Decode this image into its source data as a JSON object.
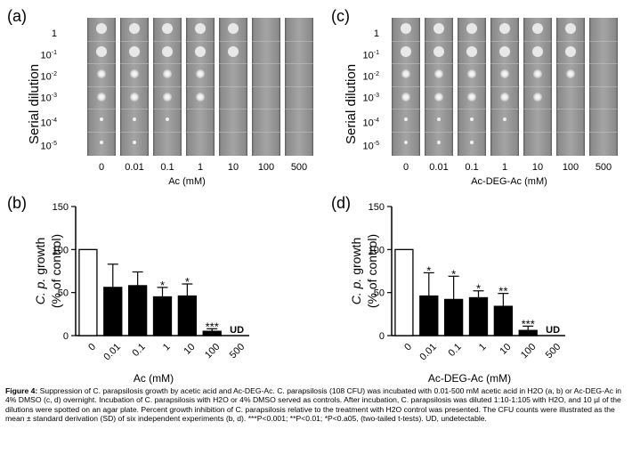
{
  "panels": {
    "a": {
      "label": "(a)",
      "ytitle": "Serial dilution",
      "xtitle": "Ac (mM)"
    },
    "b": {
      "label": "(b)"
    },
    "c": {
      "label": "(c)",
      "ytitle": "Serial dilution",
      "xtitle": "Ac-DEG-Ac (mM)"
    },
    "d": {
      "label": "(d)"
    }
  },
  "dilutions": [
    "1",
    "10-1",
    "10-2",
    "10-3",
    "10-4",
    "10-5"
  ],
  "concentrations": [
    "0",
    "0.01",
    "0.1",
    "1",
    "10",
    "100",
    "500"
  ],
  "growth_spots": {
    "a": [
      6,
      6,
      5,
      4,
      2,
      0,
      0
    ],
    "c": [
      6,
      6,
      6,
      5,
      4,
      3,
      0
    ]
  },
  "chart_data": [
    {
      "type": "bar",
      "panel": "(b)",
      "categories": [
        "0",
        "0.01",
        "0.1",
        "1",
        "10",
        "100",
        "500"
      ],
      "values": [
        100,
        56,
        58,
        45,
        46,
        5,
        null
      ],
      "errors": [
        0,
        27,
        16,
        11,
        14,
        3,
        null
      ],
      "annotations": [
        "",
        "",
        "",
        "*",
        "*",
        "***",
        "UD"
      ],
      "ylabel": "C. p. growth (% of control)",
      "xlabel": "Ac (mM)",
      "ylim": [
        0,
        150
      ],
      "yticks": [
        0,
        50,
        100,
        150
      ],
      "bar_colors": [
        "#ffffff",
        "#000000",
        "#000000",
        "#000000",
        "#000000",
        "#000000",
        "#000000"
      ],
      "grid": false
    },
    {
      "type": "bar",
      "panel": "(d)",
      "categories": [
        "0",
        "0.01",
        "0.1",
        "1",
        "10",
        "100",
        "500"
      ],
      "values": [
        100,
        46,
        42,
        44,
        34,
        6,
        null
      ],
      "errors": [
        0,
        27,
        27,
        8,
        15,
        5,
        null
      ],
      "annotations": [
        "",
        "*",
        "*",
        "*",
        "**",
        "***",
        "UD"
      ],
      "ylabel": "C. p. growth (% of control)",
      "xlabel": "Ac-DEG-Ac (mM)",
      "ylim": [
        0,
        150
      ],
      "yticks": [
        0,
        50,
        100,
        150
      ],
      "bar_colors": [
        "#ffffff",
        "#000000",
        "#000000",
        "#000000",
        "#000000",
        "#000000",
        "#000000"
      ],
      "grid": false
    }
  ],
  "caption": {
    "label": "Figure 4:",
    "text": " Suppression of C. parapsilosis growth by acetic acid and Ac-DEG-Ac. C. parapsilosis (108 CFU) was incubated with 0.01-500 mM acetic acid in H2O (a, b) or Ac-DEG-Ac in 4% DMSO (c, d) overnight. Incubation of C. parapsilosis with H2O or 4% DMSO served as controls. After incubation, C. parapsilosis was diluted 1:10-1:105 with H2O, and 10 µl of the dilutions were spotted on an agar plate. Percent growth inhibition of C. parapsilosis relative to the treatment with H2O control was presented. The CFU counts were illustrated as the mean ± standard derivation (SD) of six independent experiments (b, d). ***P<0.001; **P<0.01; *P<0.a05, (two-tailed t-tests). UD, undetectable."
  }
}
